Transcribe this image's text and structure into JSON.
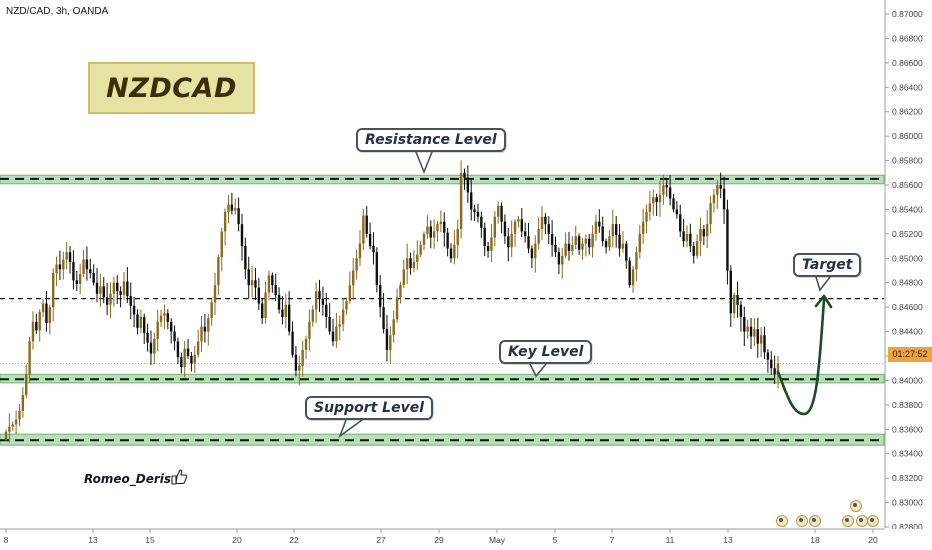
{
  "header": {
    "symbol_line": "NZD/CAD, 3h, OANDA"
  },
  "annotations": {
    "title_box": "NZDCAD",
    "resistance_label": "Resistance Level",
    "key_label": "Key Level",
    "support_label": "Support Level",
    "target_label": "Target",
    "author": "Romeo_Deris",
    "countdown": "01:27:52"
  },
  "colors": {
    "bull": "#8a6a1e",
    "bear": "#0f0f0f",
    "zone_fill": "#b9dfb9",
    "zone_border": "#6cb86c",
    "callout_border": "#45535f",
    "price_tag": "#f2a23a",
    "path": "#1e4a25"
  },
  "chart_data": {
    "type": "candlestick",
    "title": "NZD/CAD, 3h, OANDA",
    "x_tick_labels": [
      "8",
      "13",
      "15",
      "20",
      "22",
      "27",
      "29",
      "May",
      "5",
      "7",
      "11",
      "13",
      "18",
      "20"
    ],
    "y_tick_labels": [
      "0.87000",
      "0.86800",
      "0.86600",
      "0.86400",
      "0.86200",
      "0.86000",
      "0.85800",
      "0.85600",
      "0.85400",
      "0.85200",
      "0.85000",
      "0.84800",
      "0.84600",
      "0.84400",
      "0.84200",
      "0.84000",
      "0.83800",
      "0.83600",
      "0.83400",
      "0.83200",
      "0.83000",
      "0.82800"
    ],
    "ylim": [
      0.8275,
      0.8711
    ],
    "grid": false,
    "resistance_zone": [
      0.8561,
      0.8568
    ],
    "key_zone": [
      0.8398,
      0.8405
    ],
    "support_zone": [
      0.8347,
      0.8356
    ],
    "dashed_levels": [
      0.8565,
      0.8467,
      0.8401,
      0.8351
    ],
    "current_price": 0.84139,
    "close_series": [
      0.8358,
      0.8362,
      0.8364,
      0.8368,
      0.8375,
      0.8388,
      0.8405,
      0.8432,
      0.8448,
      0.8441,
      0.8456,
      0.8463,
      0.8447,
      0.846,
      0.8488,
      0.8495,
      0.8491,
      0.8499,
      0.8505,
      0.8497,
      0.8482,
      0.8479,
      0.8487,
      0.8499,
      0.8491,
      0.8488,
      0.848,
      0.8471,
      0.8477,
      0.8468,
      0.8462,
      0.8471,
      0.848,
      0.8473,
      0.847,
      0.8481,
      0.8469,
      0.8461,
      0.8454,
      0.8443,
      0.8452,
      0.8439,
      0.8431,
      0.8422,
      0.8434,
      0.8448,
      0.8453,
      0.8455,
      0.8448,
      0.844,
      0.8432,
      0.8419,
      0.8411,
      0.8426,
      0.842,
      0.8414,
      0.8421,
      0.8432,
      0.8444,
      0.844,
      0.8451,
      0.8464,
      0.8478,
      0.8501,
      0.8522,
      0.8538,
      0.8544,
      0.8539,
      0.8541,
      0.8528,
      0.851,
      0.8491,
      0.8478,
      0.8482,
      0.8476,
      0.8463,
      0.8451,
      0.8472,
      0.8486,
      0.8478,
      0.847,
      0.8458,
      0.8452,
      0.8462,
      0.844,
      0.8421,
      0.8408,
      0.8412,
      0.8425,
      0.8434,
      0.8448,
      0.8458,
      0.8473,
      0.8467,
      0.8462,
      0.8452,
      0.844,
      0.8432,
      0.8444,
      0.8446,
      0.8458,
      0.8465,
      0.8478,
      0.849,
      0.85,
      0.8512,
      0.8535,
      0.852,
      0.851,
      0.8505,
      0.8478,
      0.846,
      0.8442,
      0.8425,
      0.8437,
      0.845,
      0.8468,
      0.8478,
      0.8491,
      0.85,
      0.8492,
      0.8497,
      0.8503,
      0.8511,
      0.852,
      0.8526,
      0.8517,
      0.8522,
      0.8528,
      0.853,
      0.8521,
      0.8508,
      0.85,
      0.8511,
      0.8524,
      0.857,
      0.8566,
      0.8554,
      0.854,
      0.8538,
      0.8534,
      0.8525,
      0.851,
      0.8506,
      0.8517,
      0.8534,
      0.8543,
      0.853,
      0.8518,
      0.8509,
      0.852,
      0.853,
      0.8532,
      0.8522,
      0.8518,
      0.8508,
      0.85,
      0.8512,
      0.8524,
      0.8534,
      0.8528,
      0.852,
      0.8511,
      0.8505,
      0.8495,
      0.8502,
      0.8512,
      0.8506,
      0.8511,
      0.8518,
      0.8507,
      0.8512,
      0.8516,
      0.8509,
      0.852,
      0.853,
      0.8526,
      0.8514,
      0.8509,
      0.8518,
      0.8528,
      0.8519,
      0.8508,
      0.8512,
      0.8498,
      0.8478,
      0.8491,
      0.8505,
      0.852,
      0.853,
      0.8538,
      0.8545,
      0.855,
      0.8546,
      0.8552,
      0.856,
      0.8558,
      0.8549,
      0.854,
      0.8536,
      0.8522,
      0.8514,
      0.852,
      0.851,
      0.8502,
      0.8514,
      0.8524,
      0.8518,
      0.8528,
      0.8545,
      0.8552,
      0.856,
      0.8557,
      0.854,
      0.849,
      0.8455,
      0.847,
      0.8462,
      0.8452,
      0.844,
      0.8444,
      0.8436,
      0.8442,
      0.843,
      0.8437,
      0.8423,
      0.8417,
      0.841,
      0.8405,
      0.8414
    ]
  }
}
